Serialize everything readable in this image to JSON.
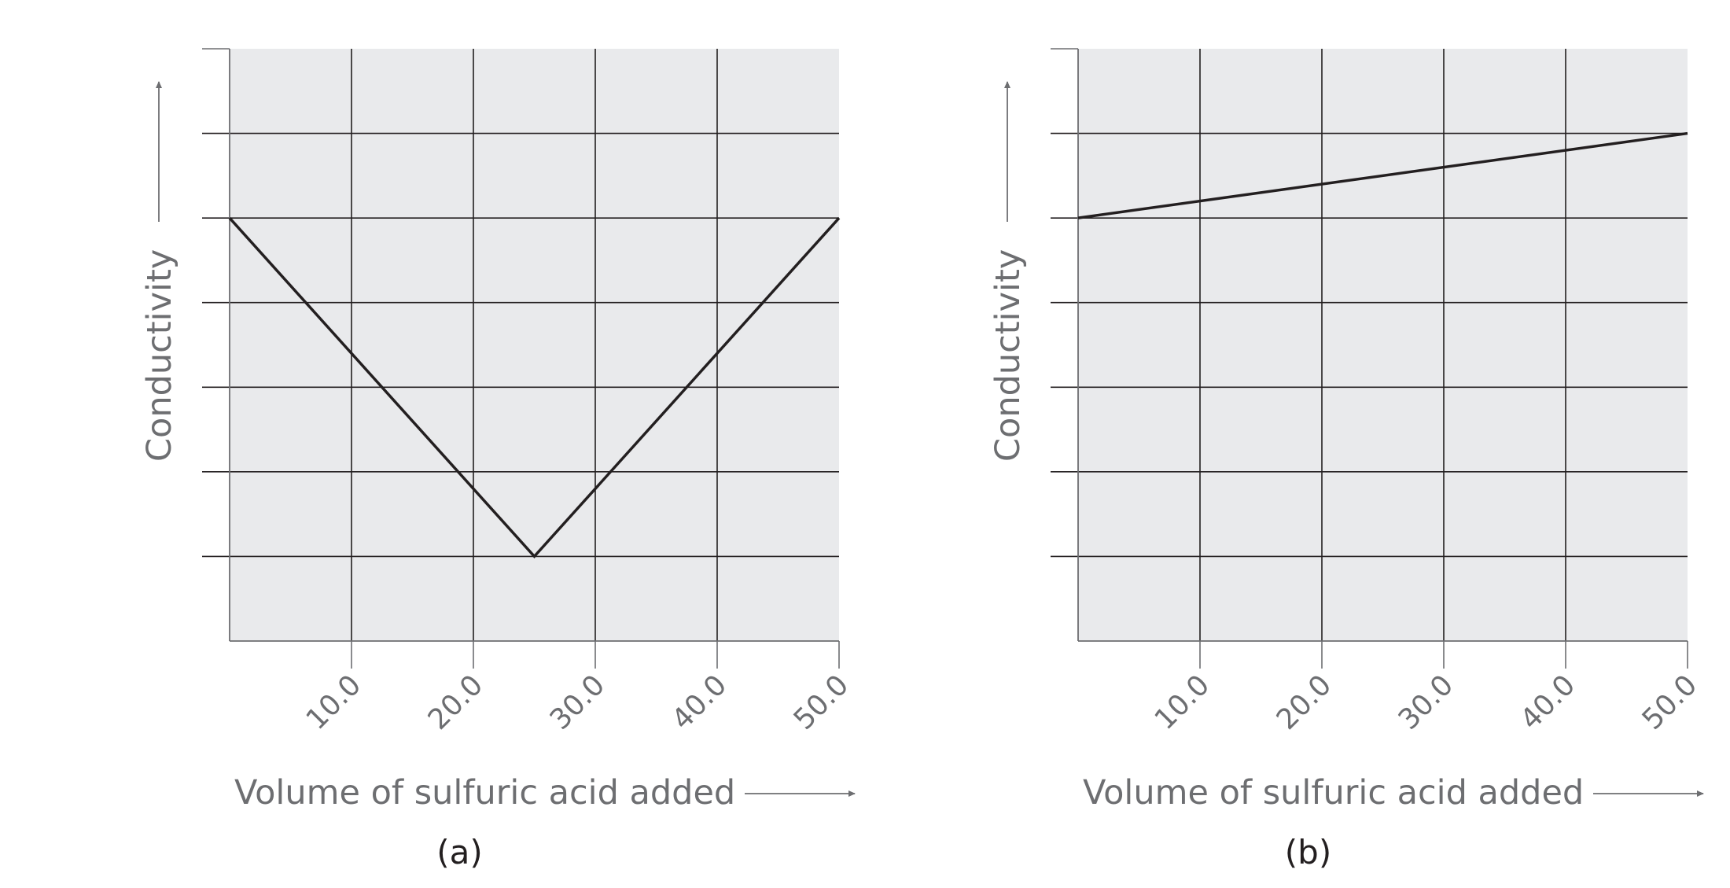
{
  "chart_data": [
    {
      "type": "line",
      "panel_label": "(a)",
      "xlabel": "Volume of sulfuric acid added",
      "ylabel": "Conductivity",
      "xlim": [
        0,
        50
      ],
      "ylim": [
        0,
        7
      ],
      "xticks": [
        10,
        20,
        30,
        40,
        50
      ],
      "xtick_labels": [
        "10.0",
        "20.0",
        "30.0",
        "40.0",
        "50.0"
      ],
      "y_gridlines": [
        1,
        2,
        3,
        4,
        5,
        6
      ],
      "grid": true,
      "series": [
        {
          "name": "conductivity",
          "x": [
            0,
            25,
            50
          ],
          "y": [
            5,
            1,
            5
          ]
        }
      ]
    },
    {
      "type": "line",
      "panel_label": "(b)",
      "xlabel": "Volume of sulfuric acid added",
      "ylabel": "Conductivity",
      "xlim": [
        0,
        50
      ],
      "ylim": [
        0,
        7
      ],
      "xticks": [
        10,
        20,
        30,
        40,
        50
      ],
      "xtick_labels": [
        "10.0",
        "20.0",
        "30.0",
        "40.0",
        "50.0"
      ],
      "y_gridlines": [
        1,
        2,
        3,
        4,
        5,
        6
      ],
      "grid": true,
      "series": [
        {
          "name": "conductivity",
          "x": [
            0,
            50
          ],
          "y": [
            5,
            6
          ]
        }
      ]
    }
  ],
  "colors": {
    "plot_bg": "#e9eaec",
    "grid": "#231f20",
    "line": "#231f20",
    "text": "#6d6e71"
  }
}
